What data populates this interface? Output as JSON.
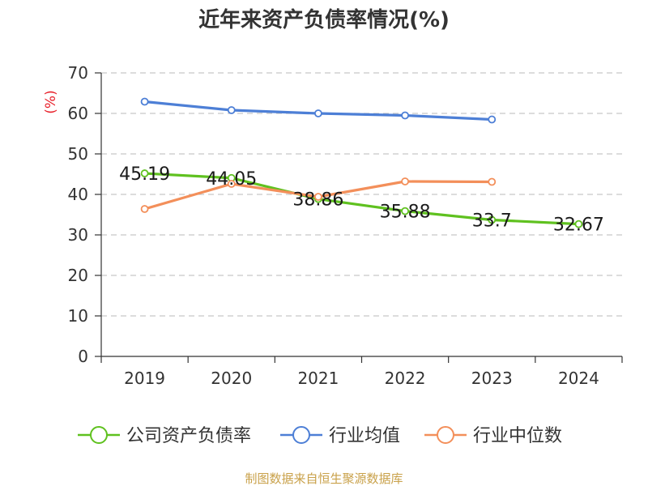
{
  "title": "近年来资产负债率情况(%)",
  "source": "制图数据来自恒生聚源数据库",
  "chart_data": {
    "type": "line",
    "title": "近年来资产负债率情况(%)",
    "ylabel": "(%)",
    "xlabel": "",
    "categories": [
      "2019",
      "2020",
      "2021",
      "2022",
      "2023",
      "2024"
    ],
    "ylim": [
      0,
      70
    ],
    "yticks": [
      0,
      10,
      20,
      30,
      40,
      50,
      60,
      70
    ],
    "grid": true,
    "legend_position": "bottom",
    "series": [
      {
        "name": "公司资产负债率",
        "color": "#5fc11f",
        "values": [
          45.19,
          44.05,
          38.86,
          35.88,
          33.7,
          32.67
        ],
        "labels": [
          "45.19",
          "44.05",
          "38.86",
          "35.88",
          "33.7",
          "32.67"
        ]
      },
      {
        "name": "行业均值",
        "color": "#4d7fd6",
        "values": [
          62.9,
          60.8,
          60.0,
          59.5,
          58.5,
          null
        ]
      },
      {
        "name": "行业中位数",
        "color": "#f38f5a",
        "values": [
          36.4,
          42.6,
          39.4,
          43.2,
          43.1,
          null
        ]
      }
    ]
  }
}
